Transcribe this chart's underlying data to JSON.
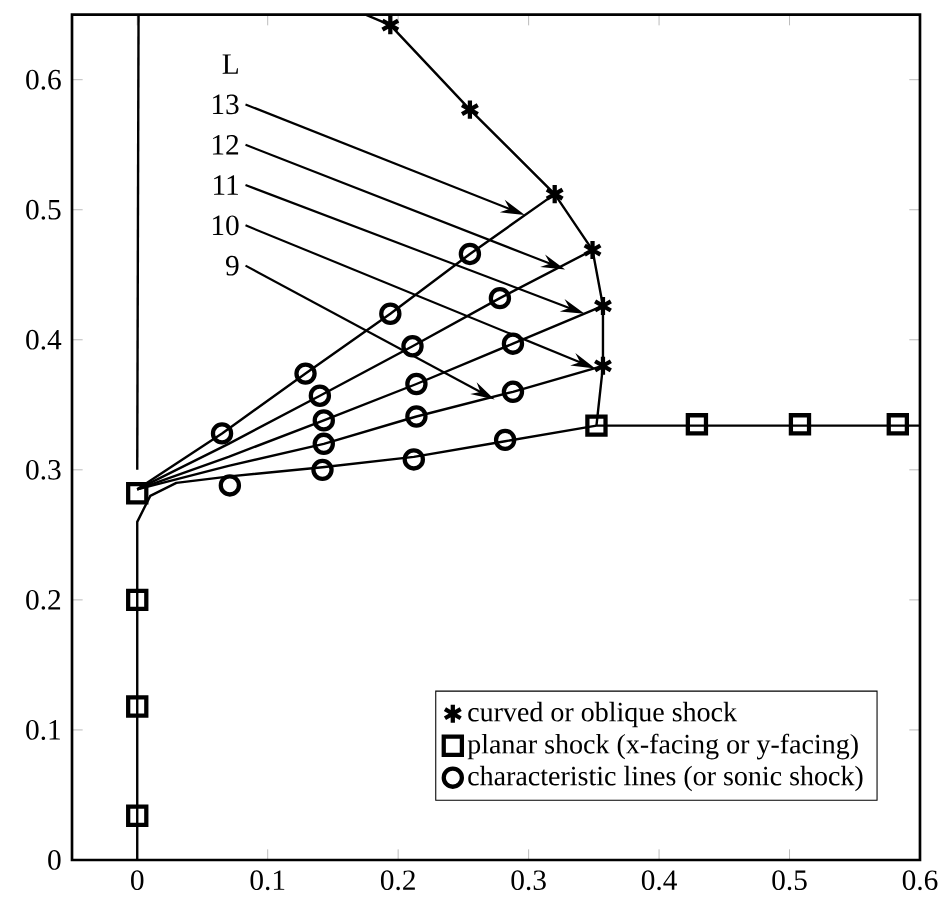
{
  "chart_data": {
    "type": "line",
    "xlim": [
      -0.05,
      0.6
    ],
    "ylim": [
      0,
      0.65
    ],
    "xticks": [
      0,
      0.1,
      0.2,
      0.3,
      0.4,
      0.5,
      0.6
    ],
    "yticks": [
      0,
      0.1,
      0.2,
      0.3,
      0.4,
      0.5,
      0.6
    ],
    "grid": false,
    "legend": "bottom right",
    "series": [
      {
        "color": "#000000",
        "x": [
          0,
          0.001
        ],
        "values": [
          0.3,
          0.65
        ]
      },
      {
        "color": "#000000",
        "x": [
          0.175,
          0.194,
          0.255,
          0.32,
          0.349,
          0.357,
          0.357,
          0.352
        ],
        "values": [
          0.65,
          0.642,
          0.577,
          0.512,
          0.469,
          0.426,
          0.38,
          0.334
        ]
      },
      {
        "color": "#000000",
        "x": [
          0,
          0,
          0.01,
          0.03,
          0.071,
          0.142,
          0.212,
          0.282,
          0.352,
          0.6
        ],
        "values": [
          0,
          0.26,
          0.28,
          0.29,
          0.295,
          0.302,
          0.31,
          0.322,
          0.334,
          0.334
        ]
      },
      {
        "color": "#000000",
        "x": [
          0,
          0.065,
          0.129,
          0.194,
          0.255,
          0.32
        ],
        "values": [
          0.285,
          0.328,
          0.374,
          0.42,
          0.466,
          0.512
        ]
      },
      {
        "color": "#000000",
        "x": [
          0,
          0.07,
          0.14,
          0.211,
          0.278,
          0.349
        ],
        "values": [
          0.285,
          0.32,
          0.357,
          0.395,
          0.432,
          0.469
        ]
      },
      {
        "color": "#000000",
        "x": [
          0,
          0.07,
          0.143,
          0.214,
          0.288,
          0.357
        ],
        "values": [
          0.285,
          0.31,
          0.338,
          0.366,
          0.397,
          0.426
        ]
      },
      {
        "color": "#000000",
        "x": [
          0,
          0.07,
          0.143,
          0.214,
          0.288,
          0.357
        ],
        "values": [
          0.285,
          0.303,
          0.32,
          0.341,
          0.36,
          0.38
        ]
      },
      {
        "type": "scatter",
        "name": "curved or oblique shock",
        "marker": "cross",
        "color": "#000000",
        "x": [
          0.194,
          0.255,
          0.32,
          0.349,
          0.357,
          0.357
        ],
        "values": [
          0.642,
          0.577,
          0.512,
          0.469,
          0.426,
          0.38
        ]
      },
      {
        "type": "scatter",
        "name": "planar shock (x-facing or y-facing)",
        "marker": "square",
        "color": "#000000",
        "x": [
          0,
          0,
          0,
          0,
          0.352,
          0.429,
          0.508,
          0.583
        ],
        "values": [
          0.034,
          0.118,
          0.2,
          0.282,
          0.334,
          0.335,
          0.335,
          0.335
        ]
      },
      {
        "type": "scatter",
        "name": "characteristic lines (or sonic shock)",
        "marker": "circle",
        "color": "#000000",
        "x": [
          0.065,
          0.129,
          0.194,
          0.255,
          0.14,
          0.211,
          0.278,
          0.143,
          0.214,
          0.288,
          0.143,
          0.214,
          0.288,
          0.071,
          0.142,
          0.212,
          0.282
        ],
        "values": [
          0.328,
          0.374,
          0.42,
          0.466,
          0.357,
          0.395,
          0.432,
          0.338,
          0.366,
          0.397,
          0.32,
          0.341,
          0.36,
          0.288,
          0.3,
          0.308,
          0.323
        ]
      }
    ],
    "annotations": [
      "L",
      {
        "text": "13",
        "x": 0.297,
        "y": 0.496
      },
      {
        "text": "12",
        "x": 0.328,
        "y": 0.454
      },
      {
        "text": "11",
        "x": 0.343,
        "y": 0.42
      },
      {
        "text": "10",
        "x": 0.351,
        "y": 0.378
      },
      {
        "text": "9",
        "x": 0.274,
        "y": 0.354
      }
    ]
  }
}
